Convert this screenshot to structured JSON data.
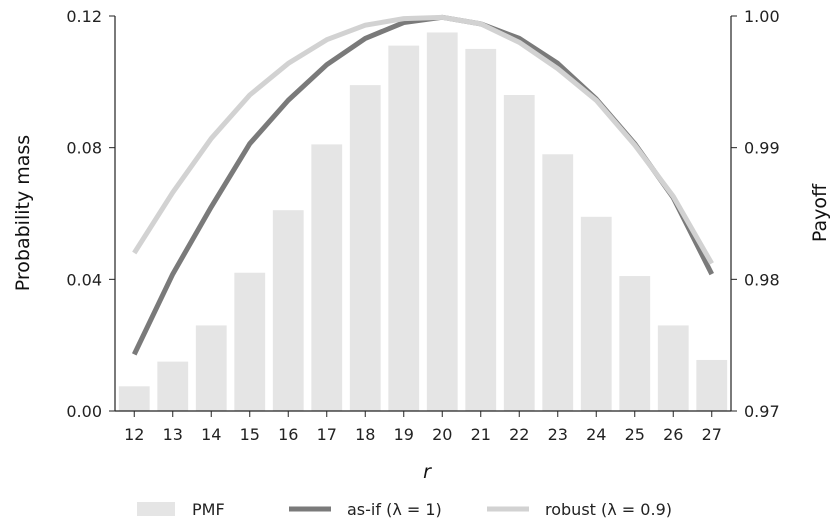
{
  "chart_data": {
    "type": "bar",
    "title": "",
    "xlabel": "r",
    "ylabel": "Probability mass",
    "y2label": "Payoff",
    "categories": [
      "12",
      "13",
      "14",
      "15",
      "16",
      "17",
      "18",
      "19",
      "20",
      "21",
      "22",
      "23",
      "24",
      "25",
      "26",
      "27"
    ],
    "ylim": [
      0.0,
      0.12
    ],
    "y2lim": [
      0.97,
      1.0
    ],
    "yticks": [
      "0.00",
      "0.04",
      "0.08",
      "0.12"
    ],
    "y2ticks": [
      "0.97",
      "0.98",
      "0.99",
      "1.00"
    ],
    "grid": false,
    "legend_position": "bottom",
    "series": [
      {
        "name": "PMF",
        "kind": "bar",
        "axis": "left",
        "color": "#e5e5e5",
        "values": [
          0.0075,
          0.015,
          0.026,
          0.042,
          0.061,
          0.081,
          0.099,
          0.111,
          0.115,
          0.11,
          0.096,
          0.078,
          0.059,
          0.041,
          0.026,
          0.0155
        ]
      },
      {
        "name": "as-if (λ = 1)",
        "kind": "line",
        "axis": "right",
        "color": "#7a7a7a",
        "values": [
          0.9743,
          0.9804,
          0.9855,
          0.9903,
          0.9936,
          0.9963,
          0.9983,
          0.9995,
          0.9999,
          0.9994,
          0.9983,
          0.9964,
          0.9937,
          0.9903,
          0.9862,
          0.9804
        ]
      },
      {
        "name": "robust (λ = 0.9)",
        "kind": "line",
        "axis": "right",
        "color": "#d2d2d2",
        "values": [
          0.982,
          0.9866,
          0.9907,
          0.994,
          0.9964,
          0.9982,
          0.9993,
          0.9998,
          0.9999,
          0.9994,
          0.998,
          0.996,
          0.9936,
          0.9902,
          0.9863,
          0.9812
        ]
      }
    ]
  },
  "legend": {
    "pmf_label": "PMF",
    "asif_label": "as-if (λ = 1)",
    "robust_label": "robust (λ = 0.9)"
  }
}
